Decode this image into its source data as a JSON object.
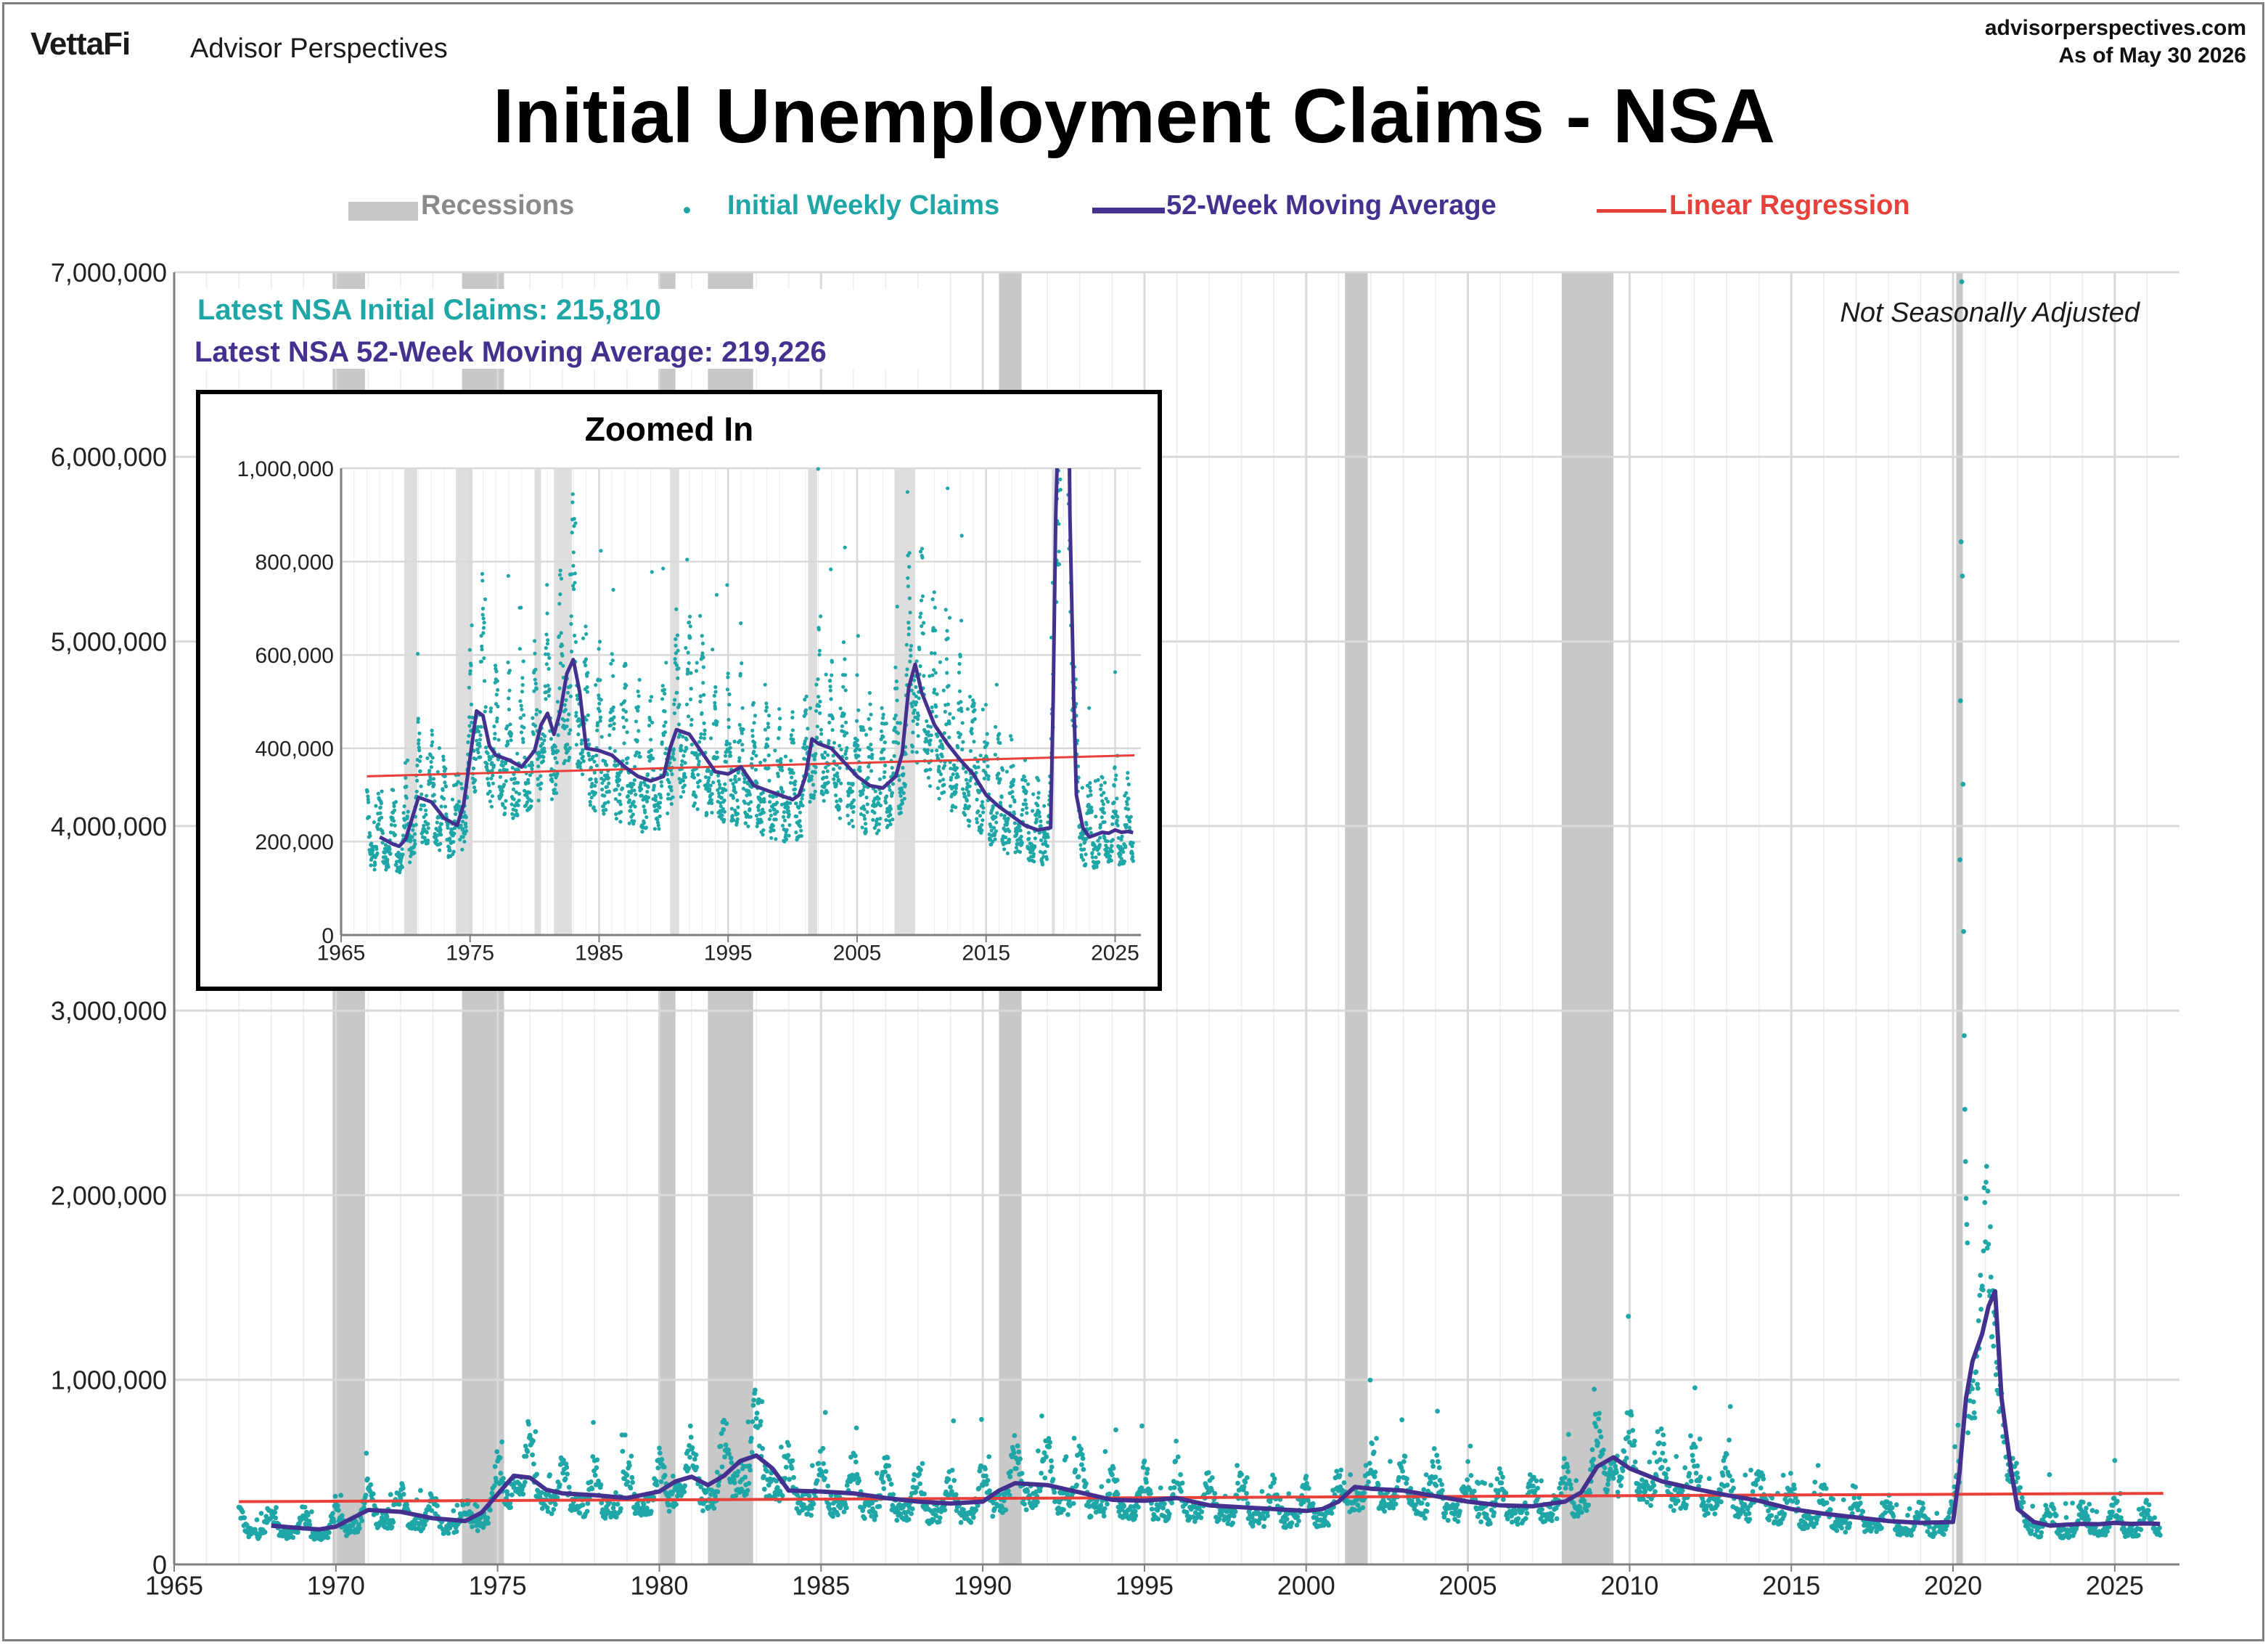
{
  "header": {
    "logo": "VettaFi",
    "brand": "Advisor Perspectives",
    "site": "advisorperspectives.com",
    "as_of": "As of May 30 2026",
    "title": "Initial Unemployment Claims - NSA"
  },
  "colors": {
    "recession": "#c8c8c8",
    "claims": "#1fa6a6",
    "moving_average": "#44318f",
    "regression": "#e8413c",
    "grid": "#d9d9d9",
    "axis": "#7f7f7f"
  },
  "chart_data": [
    {
      "id": "main",
      "type": "scatter",
      "title": "Initial Unemployment Claims - NSA",
      "subtitle": "Not Seasonally Adjusted",
      "legend": {
        "placement": "top",
        "entries": [
          "Recessions",
          "Initial Weekly Claims",
          "52-Week Moving Average",
          "Linear Regression"
        ]
      },
      "annotations": [
        "Latest NSA Initial Claims: 215,810",
        "Latest NSA 52-Week Moving Average: 219,226"
      ],
      "xlim": [
        1965,
        2027
      ],
      "ylim": [
        0,
        7000000
      ],
      "x_ticks": [
        1965,
        1970,
        1975,
        1980,
        1985,
        1990,
        1995,
        2000,
        2005,
        2010,
        2015,
        2020,
        2025
      ],
      "x_tick_labels": [
        "1965",
        "1970",
        "1975",
        "1980",
        "1985",
        "1990",
        "1995",
        "2000",
        "2005",
        "2010",
        "2015",
        "2020",
        "2025"
      ],
      "y_ticks": [
        0,
        1000000,
        2000000,
        3000000,
        4000000,
        5000000,
        6000000,
        7000000
      ],
      "y_tick_labels": [
        "0",
        "1,000,000",
        "2,000,000",
        "3,000,000",
        "4,000,000",
        "5,000,000",
        "6,000,000",
        "7,000,000"
      ],
      "grid": true,
      "recessions": [
        [
          1969.9,
          1970.9
        ],
        [
          1973.9,
          1975.2
        ],
        [
          1980.0,
          1980.5
        ],
        [
          1981.5,
          1982.9
        ],
        [
          1990.5,
          1991.2
        ],
        [
          2001.2,
          2001.9
        ],
        [
          2007.9,
          2009.5
        ],
        [
          2020.1,
          2020.3
        ]
      ],
      "series": [
        {
          "name": "52-Week Moving Average",
          "x": [
            1968.0,
            1969.0,
            1969.5,
            1970.0,
            1970.5,
            1971.0,
            1972.0,
            1973.0,
            1974.0,
            1974.5,
            1975.0,
            1975.5,
            1976.0,
            1976.5,
            1977.0,
            1978.0,
            1979.0,
            1980.0,
            1980.5,
            1981.0,
            1981.5,
            1982.0,
            1982.5,
            1983.0,
            1983.5,
            1984.0,
            1985.0,
            1986.0,
            1987.0,
            1988.0,
            1989.0,
            1990.0,
            1990.5,
            1991.0,
            1992.0,
            1993.0,
            1994.0,
            1995.0,
            1996.0,
            1997.0,
            1998.0,
            1999.0,
            2000.0,
            2000.5,
            2001.0,
            2001.5,
            2002.0,
            2003.0,
            2004.0,
            2005.0,
            2006.0,
            2007.0,
            2008.0,
            2008.5,
            2009.0,
            2009.5,
            2010.0,
            2011.0,
            2012.0,
            2013.0,
            2014.0,
            2015.0,
            2016.0,
            2017.0,
            2018.0,
            2019.0,
            2020.0,
            2020.2,
            2020.4,
            2020.6,
            2020.9,
            2021.1,
            2021.3,
            2021.5,
            2021.8,
            2022.0,
            2022.5,
            2023.0,
            2023.5,
            2024.0,
            2024.5,
            2025.0,
            2025.5,
            2026.0,
            2026.4
          ],
          "values": [
            210000,
            195000,
            190000,
            205000,
            250000,
            295000,
            285000,
            250000,
            235000,
            280000,
            380000,
            480000,
            470000,
            405000,
            385000,
            375000,
            360000,
            395000,
            450000,
            475000,
            430000,
            480000,
            560000,
            590000,
            520000,
            400000,
            395000,
            385000,
            360000,
            340000,
            330000,
            340000,
            400000,
            440000,
            430000,
            390000,
            350000,
            345000,
            360000,
            320000,
            310000,
            300000,
            290000,
            300000,
            340000,
            420000,
            410000,
            400000,
            370000,
            340000,
            320000,
            315000,
            340000,
            390000,
            530000,
            580000,
            520000,
            450000,
            410000,
            375000,
            345000,
            300000,
            275000,
            255000,
            235000,
            225000,
            230000,
            500000,
            900000,
            1100000,
            1250000,
            1400000,
            1480000,
            900000,
            500000,
            300000,
            230000,
            210000,
            215000,
            220000,
            218000,
            225000,
            220000,
            222000,
            219226
          ]
        },
        {
          "name": "Linear Regression",
          "x": [
            1967.0,
            2026.5
          ],
          "values": [
            340000,
            385000
          ]
        }
      ]
    },
    {
      "id": "inset",
      "type": "scatter",
      "title": "Zoomed In",
      "xlim": [
        1965,
        2027
      ],
      "ylim": [
        0,
        1000000
      ],
      "x_ticks": [
        1965,
        1975,
        1985,
        1995,
        2005,
        2015,
        2025
      ],
      "x_tick_labels": [
        "1965",
        "1975",
        "1985",
        "1995",
        "2005",
        "2015",
        "2025"
      ],
      "y_ticks": [
        0,
        200000,
        400000,
        600000,
        800000,
        1000000
      ],
      "y_tick_labels": [
        "0",
        "200,000",
        "400,000",
        "600,000",
        "800,000",
        "1,000,000"
      ],
      "grid": true
    }
  ]
}
